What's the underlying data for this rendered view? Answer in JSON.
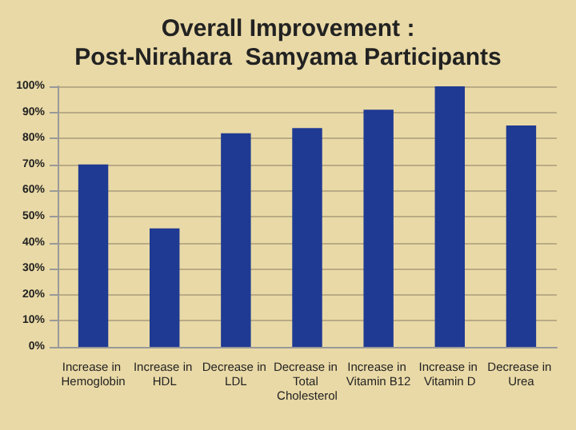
{
  "chart_data": {
    "type": "bar",
    "title": "Overall Improvement :\nPost-Nirahara  Samyama Participants",
    "categories": [
      "Increase in Hemoglobin",
      "Increase in HDL",
      "Decrease in LDL",
      "Decrease in Total Cholesterol",
      "Increase in Vitamin B12",
      "Increase in Vitamin D",
      "Decrease in Urea"
    ],
    "values": [
      70,
      45.5,
      82,
      84,
      91,
      100,
      85
    ],
    "color": "#1f3a93",
    "ylim": [
      0,
      100
    ],
    "yticks": [
      {
        "value": 0,
        "label": "0%"
      },
      {
        "value": 10,
        "label": "10%"
      },
      {
        "value": 20,
        "label": "20%"
      },
      {
        "value": 30,
        "label": "30%"
      },
      {
        "value": 40,
        "label": "40%"
      },
      {
        "value": 50,
        "label": "50%"
      },
      {
        "value": 60,
        "label": "60%"
      },
      {
        "value": 70,
        "label": "70%"
      },
      {
        "value": 80,
        "label": "80%"
      },
      {
        "value": 90,
        "label": "90%"
      },
      {
        "value": 100,
        "label": "100%"
      }
    ],
    "grid": "y"
  }
}
